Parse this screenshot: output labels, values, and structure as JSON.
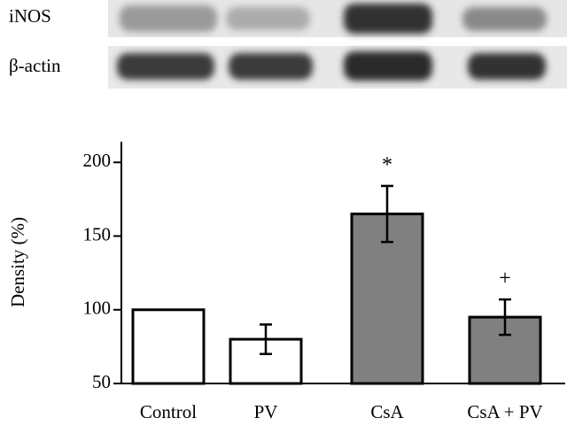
{
  "chart_data": {
    "type": "bar",
    "blot_labels": [
      "iNOS",
      "β-actin"
    ],
    "ylabel": "Density (%)",
    "categories": [
      "Control",
      "PV",
      "CsA",
      "CsA + PV"
    ],
    "values": [
      100,
      80,
      165,
      95
    ],
    "errors": [
      0,
      10,
      19,
      12
    ],
    "colors": [
      "#ffffff",
      "#ffffff",
      "#808080",
      "#808080"
    ],
    "annotations": [
      null,
      null,
      "*",
      "+"
    ],
    "ylim": [
      50,
      214
    ],
    "yticks": [
      50,
      100,
      150,
      200
    ],
    "grid": false
  }
}
